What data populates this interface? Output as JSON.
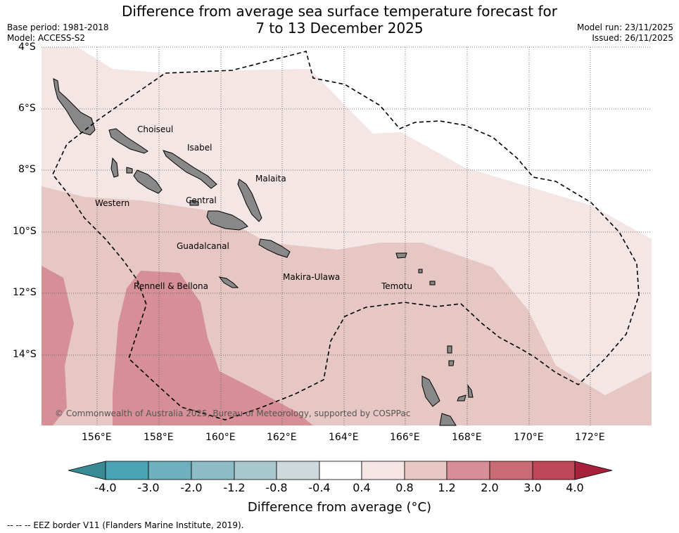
{
  "header": {
    "title_line1": "Difference from average sea surface temperature forecast for",
    "title_line2": "7 to 13 December 2025",
    "base_period": "Base period: 1981-2018",
    "model": "Model: ACCESS-S2",
    "model_run": "Model run: 23/11/2025",
    "issued": "Issued: 26/11/2025"
  },
  "map": {
    "lat_labels": [
      "4°S",
      "6°S",
      "8°S",
      "10°S",
      "12°S",
      "14°S"
    ],
    "lon_labels": [
      "156°E",
      "158°E",
      "160°E",
      "162°E",
      "164°E",
      "166°E",
      "168°E",
      "170°E",
      "172°E"
    ],
    "places": {
      "choiseul": "Choiseul",
      "isabel": "Isabel",
      "malaita": "Malaita",
      "western": "Western",
      "central": "Central",
      "guadalcanal": "Guadalcanal",
      "makira": "Makira-Ulawa",
      "temotu": "Temotu",
      "rennell": "Rennell & Bellona"
    },
    "copyright": "© Commonwealth of Australia 2025, Bureau of Meteorology, supported by COSPPac"
  },
  "colorbar": {
    "ticks": [
      "-4.0",
      "-3.0",
      "-2.0",
      "-1.2",
      "-0.8",
      "-0.4",
      "0.4",
      "0.8",
      "1.2",
      "2.0",
      "3.0",
      "4.0"
    ],
    "colors": {
      "under": "#3a8a96",
      "c1": "#4aa3b3",
      "c2": "#6fb0bf",
      "c3": "#8dbcc6",
      "c4": "#a9c8cc",
      "c5": "#cdd9db",
      "neutral": "#ffffff",
      "w1": "#f3e6e5",
      "w2": "#e6c7c3",
      "w3": "#d68f96",
      "w4": "#c96b74",
      "w5": "#bf4757",
      "over": "#a8203a"
    },
    "label": "Difference from average (°C)"
  },
  "footer": {
    "legend_text": "--  --  -- EEZ border V11 (Flanders Marine Institute, 2019)."
  }
}
